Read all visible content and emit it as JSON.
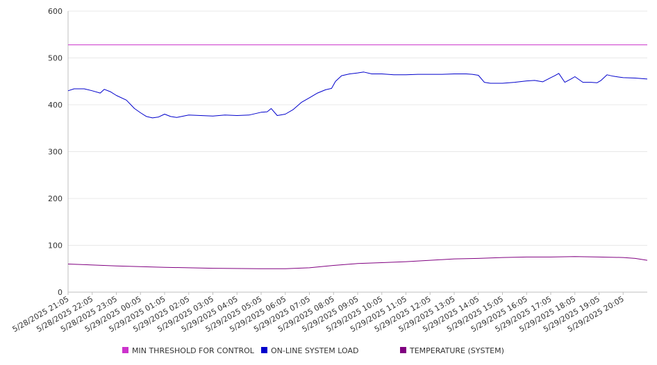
{
  "chart_data": {
    "type": "line",
    "title": "",
    "xlabel": "",
    "ylabel": "",
    "ylim": [
      0,
      600
    ],
    "y_ticks": [
      0,
      100,
      200,
      300,
      400,
      500,
      600
    ],
    "grid": "horizontal",
    "legend_position": "bottom",
    "x_tick_labels": [
      "5/28/2025 21:05",
      "5/28/2025 22:05",
      "5/28/2025 23:05",
      "5/29/2025 00:05",
      "5/29/2025 01:05",
      "5/29/2025 02:05",
      "5/29/2025 03:05",
      "5/29/2025 04:05",
      "5/29/2025 05:05",
      "5/29/2025 06:05",
      "5/29/2025 07:05",
      "5/29/2025 08:05",
      "5/29/2025 09:05",
      "5/29/2025 10:05",
      "5/29/2025 11:05",
      "5/29/2025 12:05",
      "5/29/2025 13:05",
      "5/29/2025 14:05",
      "5/29/2025 15:05",
      "5/29/2025 16:05",
      "5/29/2025 17:05",
      "5/29/2025 18:05",
      "5/29/2025 19:05",
      "5/29/2025 20:05"
    ],
    "x_range": [
      "5/28/2025 21:05",
      "5/29/2025 21:05"
    ],
    "series": [
      {
        "name": "MIN THRESHOLD FOR CONTROL",
        "color": "#cc33cc",
        "x": [
          "5/28/2025 21:05",
          "5/29/2025 21:05"
        ],
        "values": [
          528,
          528
        ]
      },
      {
        "name": "ON-LINE SYSTEM LOAD",
        "color": "#0000cc",
        "x": [
          "5/28/2025 21:05",
          "5/28/2025 21:20",
          "5/28/2025 21:45",
          "5/28/2025 22:05",
          "5/28/2025 22:25",
          "5/28/2025 22:35",
          "5/28/2025 22:50",
          "5/28/2025 23:05",
          "5/28/2025 23:30",
          "5/28/2025 23:50",
          "5/29/2025 00:05",
          "5/29/2025 00:20",
          "5/29/2025 00:35",
          "5/29/2025 00:50",
          "5/29/2025 01:05",
          "5/29/2025 01:20",
          "5/29/2025 01:35",
          "5/29/2025 02:05",
          "5/29/2025 02:35",
          "5/29/2025 03:05",
          "5/29/2025 03:35",
          "5/29/2025 04:05",
          "5/29/2025 04:35",
          "5/29/2025 05:05",
          "5/29/2025 05:20",
          "5/29/2025 05:30",
          "5/29/2025 05:45",
          "5/29/2025 06:05",
          "5/29/2025 06:25",
          "5/29/2025 06:45",
          "5/29/2025 07:05",
          "5/29/2025 07:25",
          "5/29/2025 07:45",
          "5/29/2025 08:00",
          "5/29/2025 08:10",
          "5/29/2025 08:25",
          "5/29/2025 08:45",
          "5/29/2025 09:05",
          "5/29/2025 09:20",
          "5/29/2025 09:40",
          "5/29/2025 10:05",
          "5/29/2025 10:35",
          "5/29/2025 11:05",
          "5/29/2025 11:35",
          "5/29/2025 12:05",
          "5/29/2025 12:35",
          "5/29/2025 13:05",
          "5/29/2025 13:35",
          "5/29/2025 13:50",
          "5/29/2025 14:05",
          "5/29/2025 14:20",
          "5/29/2025 14:35",
          "5/29/2025 15:05",
          "5/29/2025 15:35",
          "5/29/2025 16:05",
          "5/29/2025 16:25",
          "5/29/2025 16:45",
          "5/29/2025 17:05",
          "5/29/2025 17:15",
          "5/29/2025 17:25",
          "5/29/2025 17:40",
          "5/29/2025 17:55",
          "5/29/2025 18:05",
          "5/29/2025 18:25",
          "5/29/2025 18:45",
          "5/29/2025 19:00",
          "5/29/2025 19:10",
          "5/29/2025 19:25",
          "5/29/2025 19:40",
          "5/29/2025 20:05",
          "5/29/2025 20:35",
          "5/29/2025 21:05"
        ],
        "values": [
          430,
          434,
          434,
          430,
          425,
          433,
          428,
          420,
          410,
          392,
          383,
          375,
          372,
          374,
          380,
          375,
          373,
          378,
          377,
          376,
          378,
          377,
          378,
          384,
          385,
          392,
          377,
          380,
          390,
          405,
          415,
          425,
          432,
          435,
          450,
          462,
          466,
          468,
          470,
          466,
          466,
          464,
          464,
          465,
          465,
          465,
          466,
          466,
          465,
          463,
          448,
          446,
          446,
          448,
          451,
          452,
          449,
          458,
          462,
          467,
          448,
          455,
          460,
          448,
          448,
          447,
          452,
          464,
          461,
          458,
          457,
          455
        ]
      },
      {
        "name": "TEMPERATURE (SYSTEM)",
        "color": "#800080",
        "x": [
          "5/28/2025 21:05",
          "5/28/2025 23:05",
          "5/29/2025 01:05",
          "5/29/2025 03:05",
          "5/29/2025 05:05",
          "5/29/2025 06:05",
          "5/29/2025 07:05",
          "5/29/2025 08:05",
          "5/29/2025 09:05",
          "5/29/2025 10:05",
          "5/29/2025 11:05",
          "5/29/2025 12:05",
          "5/29/2025 13:05",
          "5/29/2025 14:05",
          "5/29/2025 15:05",
          "5/29/2025 16:05",
          "5/29/2025 17:05",
          "5/29/2025 18:05",
          "5/29/2025 19:05",
          "5/29/2025 20:05",
          "5/29/2025 20:35",
          "5/29/2025 21:05"
        ],
        "values": [
          60,
          56,
          53,
          51,
          50,
          50,
          52,
          57,
          61,
          63,
          65,
          68,
          71,
          72,
          74,
          75,
          75,
          76,
          75,
          74,
          72,
          68
        ]
      }
    ]
  }
}
